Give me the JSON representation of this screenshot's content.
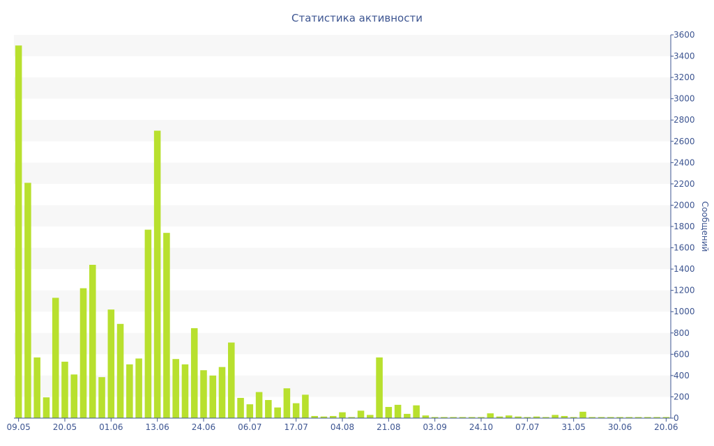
{
  "chart_data": {
    "type": "bar",
    "title": "Статистика активности",
    "xlabel": "",
    "ylabel": "Сообщений",
    "ylim": [
      0,
      3600
    ],
    "yticks": [
      0,
      200,
      400,
      600,
      800,
      1000,
      1200,
      1400,
      1600,
      1800,
      2000,
      2200,
      2400,
      2600,
      2800,
      3000,
      3200,
      3400,
      3600
    ],
    "y_axis_side": "right",
    "grid": "alternating horizontal bands",
    "bar_color": "#b8e02e",
    "xtick_labels": [
      {
        "index": 0,
        "label": "09.05"
      },
      {
        "index": 5,
        "label": "20.05"
      },
      {
        "index": 10,
        "label": "01.06"
      },
      {
        "index": 15,
        "label": "13.06"
      },
      {
        "index": 20,
        "label": "24.06"
      },
      {
        "index": 25,
        "label": "06.07"
      },
      {
        "index": 30,
        "label": "17.07"
      },
      {
        "index": 35,
        "label": "04.08"
      },
      {
        "index": 40,
        "label": "21.08"
      },
      {
        "index": 45,
        "label": "03.09"
      },
      {
        "index": 50,
        "label": "24.10"
      },
      {
        "index": 55,
        "label": "07.07"
      },
      {
        "index": 60,
        "label": "31.05"
      },
      {
        "index": 65,
        "label": "30.06"
      },
      {
        "index": 70,
        "label": "20.06"
      }
    ],
    "values": [
      3500,
      2210,
      570,
      195,
      1130,
      530,
      410,
      1220,
      1440,
      385,
      1020,
      885,
      505,
      560,
      1770,
      2700,
      1740,
      555,
      505,
      845,
      450,
      400,
      480,
      710,
      190,
      130,
      245,
      170,
      100,
      280,
      140,
      220,
      20,
      15,
      20,
      55,
      10,
      70,
      30,
      570,
      105,
      125,
      40,
      120,
      25,
      10,
      10,
      10,
      10,
      10,
      10,
      45,
      15,
      25,
      15,
      10,
      15,
      10,
      30,
      20,
      10,
      60,
      10,
      10,
      10,
      10,
      10,
      10,
      10,
      10,
      10
    ]
  }
}
